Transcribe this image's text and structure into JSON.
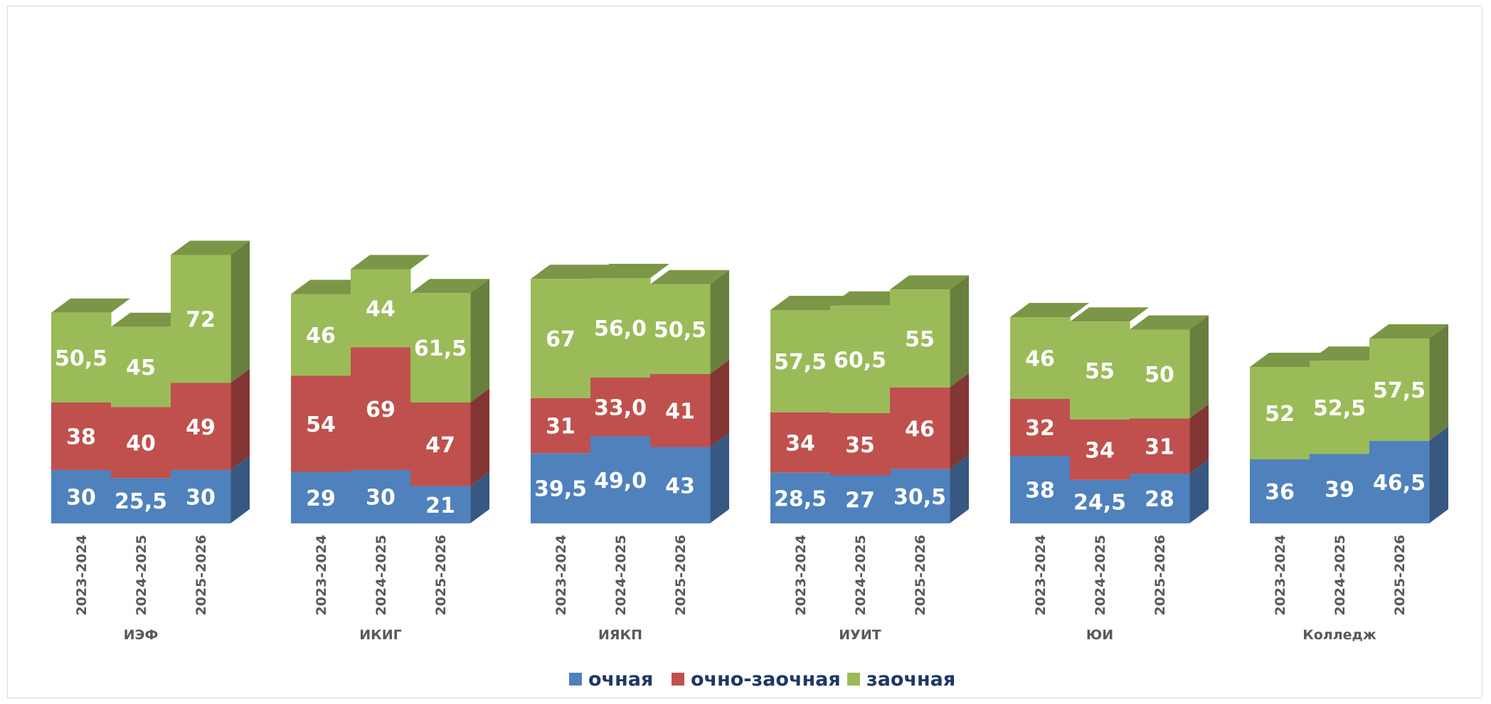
{
  "chart_data": {
    "type": "bar",
    "stacked": true,
    "three_d": true,
    "groups": [
      {
        "name": "ИЭФ",
        "categories": [
          "2023-2024",
          "2024-2025",
          "2025-2026"
        ]
      },
      {
        "name": "ИКИГ",
        "categories": [
          "2023-2024",
          "2024-2025",
          "2025-2026"
        ]
      },
      {
        "name": "ИЯКП",
        "categories": [
          "2023-2024",
          "2024-2025",
          "2025-2026"
        ]
      },
      {
        "name": "ИУИТ",
        "categories": [
          "2023-2024",
          "2024-2025",
          "2025-2026"
        ]
      },
      {
        "name": "ЮИ",
        "categories": [
          "2023-2024",
          "2024-2025",
          "2025-2026"
        ]
      },
      {
        "name": "Колледж",
        "categories": [
          "2023-2024",
          "2024-2025",
          "2025-2026"
        ]
      }
    ],
    "series": [
      {
        "name": "очная",
        "color": "#4f81bd",
        "values": [
          [
            30,
            25.5,
            30
          ],
          [
            29,
            30,
            21
          ],
          [
            39.5,
            49.0,
            43
          ],
          [
            28.5,
            27,
            30.5
          ],
          [
            38,
            24.5,
            28
          ],
          [
            36,
            39,
            46.5
          ]
        ],
        "labels": [
          [
            "30",
            "25,5",
            "30"
          ],
          [
            "29",
            "30",
            "21"
          ],
          [
            "39,5",
            "49,0",
            "43"
          ],
          [
            "28,5",
            "27",
            "30,5"
          ],
          [
            "38",
            "24,5",
            "28"
          ],
          [
            "36",
            "39",
            "46,5"
          ]
        ]
      },
      {
        "name": "очно-заочная",
        "color": "#c0504d",
        "values": [
          [
            38,
            40,
            49
          ],
          [
            54,
            69,
            47
          ],
          [
            31,
            33.0,
            41
          ],
          [
            34,
            35,
            46
          ],
          [
            32,
            34,
            31
          ],
          [
            0,
            0,
            0
          ]
        ],
        "labels": [
          [
            "38",
            "40",
            "49"
          ],
          [
            "54",
            "69",
            "47"
          ],
          [
            "31",
            "33,0",
            "41"
          ],
          [
            "34",
            "35",
            "46"
          ],
          [
            "32",
            "34",
            "31"
          ],
          [
            "",
            "",
            ""
          ]
        ]
      },
      {
        "name": "заочная",
        "color": "#9bbb59",
        "values": [
          [
            50.5,
            45,
            72
          ],
          [
            46,
            44,
            61.5
          ],
          [
            67,
            56.0,
            50.5
          ],
          [
            57.5,
            60.5,
            55
          ],
          [
            46,
            55,
            50
          ],
          [
            52,
            52.5,
            57.5
          ]
        ],
        "labels": [
          [
            "50,5",
            "45",
            "72"
          ],
          [
            "46",
            "44",
            "61,5"
          ],
          [
            "67",
            "56,0",
            "50,5"
          ],
          [
            "57,5",
            "60,5",
            "55"
          ],
          [
            "46",
            "55",
            "50"
          ],
          [
            "52",
            "52,5",
            "57,5"
          ]
        ]
      }
    ],
    "legend": {
      "position": "bottom"
    },
    "grid": false,
    "title": "",
    "xlabel": "",
    "ylabel": ""
  }
}
